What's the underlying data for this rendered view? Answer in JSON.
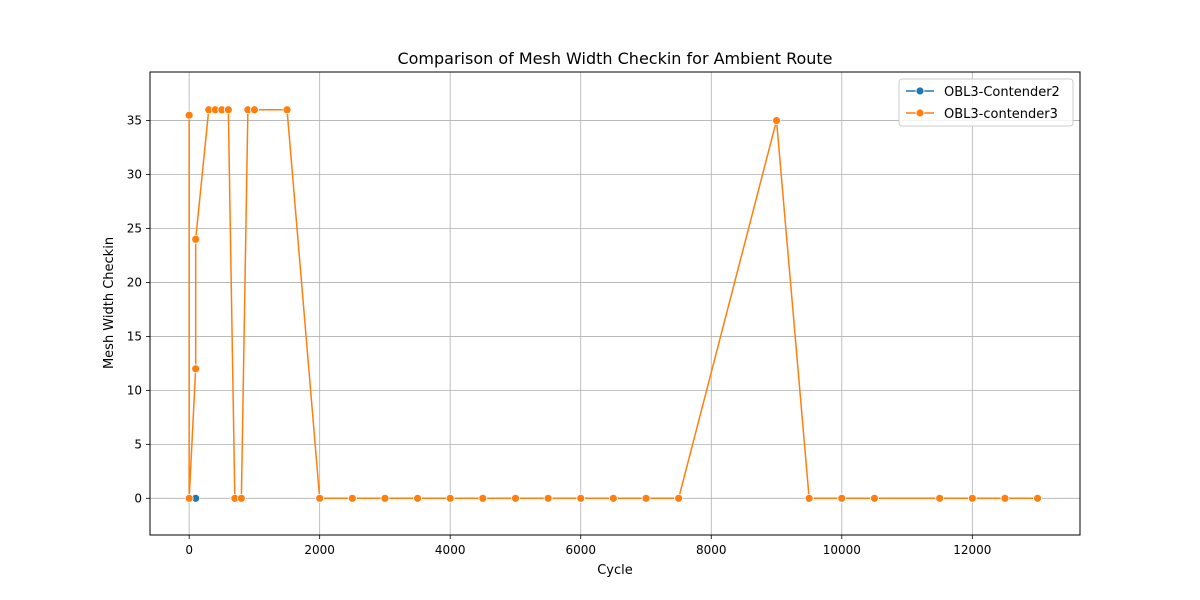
{
  "chart_data": {
    "type": "line",
    "title": "Comparison of Mesh Width Checkin for Ambient Route",
    "xlabel": "Cycle",
    "ylabel": "Mesh Width Checkin",
    "xlim": [
      -600,
      13650
    ],
    "ylim": [
      -3.4,
      39.5
    ],
    "x_ticks": [
      0,
      2000,
      4000,
      6000,
      8000,
      10000,
      12000
    ],
    "y_ticks": [
      0,
      5,
      10,
      15,
      20,
      25,
      30,
      35
    ],
    "grid": true,
    "legend_position": "top-right",
    "series": [
      {
        "name": "OBL3-Contender2",
        "color": "#1f77b4",
        "points": [
          [
            0,
            0
          ],
          [
            100,
            0
          ]
        ]
      },
      {
        "name": "OBL3-contender3",
        "color": "#ff7f0e",
        "points": [
          [
            0,
            35.5
          ],
          [
            0,
            0
          ],
          [
            100,
            12
          ],
          [
            100,
            24
          ],
          [
            300,
            36
          ],
          [
            400,
            36
          ],
          [
            500,
            36
          ],
          [
            600,
            36
          ],
          [
            700,
            0
          ],
          [
            800,
            0
          ],
          [
            900,
            36
          ],
          [
            1000,
            36
          ],
          [
            1500,
            36
          ],
          [
            2000,
            0
          ],
          [
            2500,
            0
          ],
          [
            3000,
            0
          ],
          [
            3500,
            0
          ],
          [
            4000,
            0
          ],
          [
            4500,
            0
          ],
          [
            5000,
            0
          ],
          [
            5500,
            0
          ],
          [
            6000,
            0
          ],
          [
            6500,
            0
          ],
          [
            7000,
            0
          ],
          [
            7500,
            0
          ],
          [
            9000,
            35
          ],
          [
            9500,
            0
          ],
          [
            10000,
            0
          ],
          [
            10500,
            0
          ],
          [
            11500,
            0
          ],
          [
            12000,
            0
          ],
          [
            12500,
            0
          ],
          [
            13000,
            0
          ]
        ]
      }
    ]
  }
}
